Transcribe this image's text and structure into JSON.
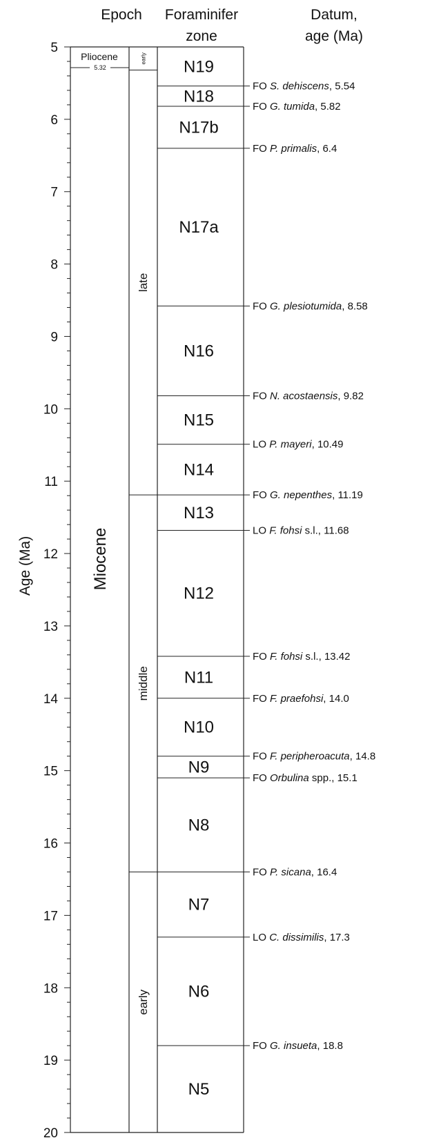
{
  "headers": {
    "epoch": "Epoch",
    "zone_line1": "Foraminifer",
    "zone_line2": "zone",
    "datum_line1": "Datum,",
    "datum_line2": "age (Ma)"
  },
  "axis": {
    "title": "Age (Ma)",
    "min": 5,
    "max": 20,
    "major_ticks": [
      "5",
      "6",
      "7",
      "8",
      "9",
      "10",
      "11",
      "12",
      "13",
      "14",
      "15",
      "16",
      "17",
      "18",
      "19",
      "20"
    ]
  },
  "epochs": {
    "pliocene": "Pliocene",
    "pliocene_boundary": "5.32",
    "miocene": "Miocene"
  },
  "subepochs": [
    {
      "label": "early",
      "start": 5.0,
      "end": 5.32
    },
    {
      "label": "late",
      "start": 5.32,
      "end": 11.19
    },
    {
      "label": "middle",
      "start": 11.19,
      "end": 16.4
    },
    {
      "label": "early",
      "start": 16.4,
      "end": 20.0
    }
  ],
  "zones": [
    {
      "label": "N19",
      "start": 5.0,
      "end": 5.54
    },
    {
      "label": "N18",
      "start": 5.54,
      "end": 5.82
    },
    {
      "label": "N17b",
      "start": 5.82,
      "end": 6.4
    },
    {
      "label": "N17a",
      "start": 6.4,
      "end": 8.58
    },
    {
      "label": "N16",
      "start": 8.58,
      "end": 9.82
    },
    {
      "label": "N15",
      "start": 9.82,
      "end": 10.49
    },
    {
      "label": "N14",
      "start": 10.49,
      "end": 11.19
    },
    {
      "label": "N13",
      "start": 11.19,
      "end": 11.68
    },
    {
      "label": "N12",
      "start": 11.68,
      "end": 13.42
    },
    {
      "label": "N11",
      "start": 13.42,
      "end": 14.0
    },
    {
      "label": "N10",
      "start": 14.0,
      "end": 14.8
    },
    {
      "label": "N9",
      "start": 14.8,
      "end": 15.1
    },
    {
      "label": "N8",
      "start": 15.1,
      "end": 16.4
    },
    {
      "label": "N7",
      "start": 16.4,
      "end": 17.3
    },
    {
      "label": "N6",
      "start": 17.3,
      "end": 18.8
    },
    {
      "label": "N5",
      "start": 18.8,
      "end": 20.0
    }
  ],
  "datums": [
    {
      "type": "FO",
      "taxon": "S. dehiscens",
      "suffix": "",
      "age": "5.54"
    },
    {
      "type": "FO",
      "taxon": "G. tumida",
      "suffix": "",
      "age": "5.82"
    },
    {
      "type": "FO",
      "taxon": "P. primalis",
      "suffix": "",
      "age": "6.4"
    },
    {
      "type": "FO",
      "taxon": "G. plesiotumida",
      "suffix": "",
      "age": "8.58"
    },
    {
      "type": "FO",
      "taxon": "N. acostaensis",
      "suffix": "",
      "age": "9.82"
    },
    {
      "type": "LO",
      "taxon": "P. mayeri",
      "suffix": "",
      "age": "10.49"
    },
    {
      "type": "FO",
      "taxon": "G. nepenthes",
      "suffix": "",
      "age": "11.19"
    },
    {
      "type": "LO",
      "taxon": "F. fohsi",
      "suffix": " s.l.",
      "age": "11.68"
    },
    {
      "type": "FO",
      "taxon": "F. fohsi",
      "suffix": " s.l.",
      "age": "13.42"
    },
    {
      "type": "FO",
      "taxon": "F. praefohsi",
      "suffix": "",
      "age": "14.0"
    },
    {
      "type": "FO",
      "taxon": "F. peripheroacuta",
      "suffix": "",
      "age": "14.8"
    },
    {
      "type": "FO",
      "taxon": "Orbulina",
      "suffix": " spp.",
      "age": "15.1"
    },
    {
      "type": "FO",
      "taxon": "P. sicana",
      "suffix": "",
      "age": "16.4"
    },
    {
      "type": "LO",
      "taxon": "C. dissimilis",
      "suffix": "",
      "age": "17.3"
    },
    {
      "type": "FO",
      "taxon": "G. insueta",
      "suffix": "",
      "age": "18.8"
    }
  ]
}
